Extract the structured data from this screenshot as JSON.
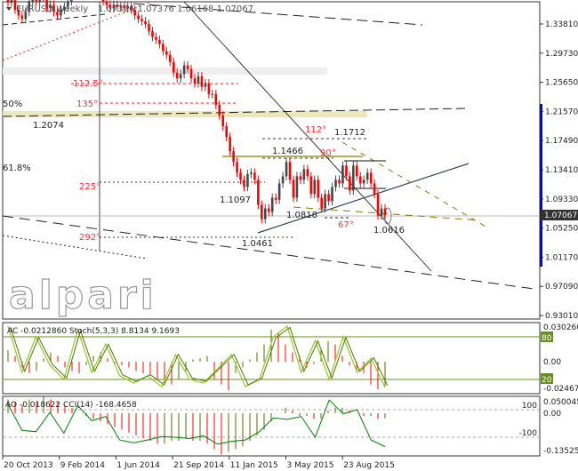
{
  "header": {
    "symbol": "EURUSD,Weekly",
    "ohlc": "1.07376 1.07376 1.06168 1.07067"
  },
  "current_price": "1.07067",
  "watermark": "alpari",
  "colors": {
    "bull": "#404a4a",
    "bear": "#ff0000",
    "stoch_main": "#4a7a00",
    "stoch_signal": "#9acd32",
    "level": "#6b8e23",
    "cci": "#008000",
    "current_price_bg": "#333333",
    "scale_bar": "#0000ff"
  },
  "annotations": {
    "fib_50": "50%",
    "fib_618": "61.8%",
    "a1125": "112.5°",
    "a135": "135°",
    "a225": "225°",
    "a292": "292°",
    "a112": "112°",
    "a90": "90°",
    "a67": "67°",
    "p12074": "1.2074",
    "p11097": "1.1097",
    "p10461": "1.0461",
    "p11466": "1.1466",
    "p10818": "1.0818",
    "p11712": "1.1712",
    "p10616": "1.0616"
  },
  "chart_data": [
    {
      "type": "candlestick",
      "title": "EURUSD,Weekly",
      "ylim": [
        0.91,
        1.37
      ],
      "yticks": [
        "1.33810",
        "1.29730",
        "1.25650",
        "1.21570",
        "1.17490",
        "1.13410",
        "1.09330",
        "1.05250",
        "1.01170",
        "0.97090",
        "0.93010"
      ],
      "xticks": [
        "20 Oct 2013",
        "9 Feb 2014",
        "1 Jun 2014",
        "21 Sep 2014",
        "11 Jan 2015",
        "3 May 2015",
        "23 Aug 2015"
      ],
      "closes": [
        1.368,
        1.38,
        1.358,
        1.35,
        1.345,
        1.355,
        1.37,
        1.375,
        1.37,
        1.38,
        1.375,
        1.36,
        1.365,
        1.355,
        1.35,
        1.358,
        1.362,
        1.37,
        1.378,
        1.385,
        1.38,
        1.378,
        1.382,
        1.386,
        1.388,
        1.39,
        1.385,
        1.37,
        1.365,
        1.36,
        1.365,
        1.362,
        1.364,
        1.36,
        1.363,
        1.358,
        1.35,
        1.345,
        1.342,
        1.338,
        1.328,
        1.32,
        1.316,
        1.31,
        1.3,
        1.295,
        1.285,
        1.27,
        1.262,
        1.268,
        1.28,
        1.275,
        1.262,
        1.255,
        1.265,
        1.25,
        1.255,
        1.24,
        1.24,
        1.225,
        1.21,
        1.195,
        1.18,
        1.16,
        1.145,
        1.13,
        1.12,
        1.11,
        1.128,
        1.13,
        1.12,
        1.085,
        1.065,
        1.08,
        1.075,
        1.095,
        1.092,
        1.115,
        1.125,
        1.145,
        1.12,
        1.095,
        1.125,
        1.12,
        1.135,
        1.125,
        1.1,
        1.12,
        1.095,
        1.08,
        1.1,
        1.09,
        1.11,
        1.12,
        1.115,
        1.14,
        1.125,
        1.105,
        1.14,
        1.125,
        1.115,
        1.12,
        1.13,
        1.115,
        1.1,
        1.07,
        1.08,
        1.07067
      ]
    },
    {
      "type": "indicator",
      "label": "AC -0.0212860  Stoch(5,3,3) 8.8134 9.1693",
      "yticks": [
        "0.030260",
        "0.00",
        "-0.024678"
      ],
      "levels": [
        "80",
        "20"
      ],
      "ac": [
        0.01,
        0.005,
        -0.005,
        -0.01,
        -0.008,
        0.003,
        0.008,
        0.005,
        -0.005,
        -0.008,
        -0.01,
        -0.003,
        0.005,
        0.008,
        0.003,
        -0.002,
        -0.003,
        -0.005,
        -0.008,
        -0.01,
        -0.012,
        -0.015,
        -0.018,
        -0.02,
        -0.015,
        -0.008,
        0.002,
        0.003,
        0.005,
        -0.015,
        -0.02,
        -0.025,
        -0.01,
        -0.005,
        0.002,
        0.008,
        0.015,
        0.028,
        0.025,
        0.015,
        0.008,
        0.005,
        -0.005,
        -0.002,
        0.01,
        0.018,
        0.015,
        0.005,
        -0.003,
        -0.008,
        -0.01,
        -0.02,
        -0.024,
        -0.0213
      ],
      "stoch": [
        95,
        30,
        80,
        40,
        20,
        90,
        30,
        70,
        25,
        15,
        25,
        10,
        55,
        20,
        15,
        35,
        55,
        10,
        20,
        80,
        95,
        30,
        75,
        20,
        80,
        30,
        50,
        8.8
      ]
    },
    {
      "type": "indicator",
      "label": "AO -0.018622  CCI(14) -168.4658",
      "yticks": [
        "0.050045",
        "0.00",
        "-0.135252"
      ],
      "levels": [
        "100",
        "-100"
      ],
      "ao": [
        0.05,
        0.04,
        0.03,
        0.05,
        0.04,
        0.06,
        0.05,
        0.04,
        0.03,
        0.02,
        0,
        -0.01,
        -0.02,
        -0.03,
        -0.04,
        -0.05,
        -0.06,
        -0.07,
        -0.08,
        -0.09,
        -0.1,
        -0.11,
        -0.11,
        -0.1,
        -0.1,
        -0.09,
        -0.1,
        -0.1,
        -0.11,
        -0.13,
        -0.15,
        -0.14,
        -0.13,
        -0.12,
        -0.1,
        -0.08,
        -0.06,
        -0.03,
        0,
        0.02,
        0.01,
        -0.01,
        -0.01,
        -0.02,
        -0.02,
        0.01,
        0.02,
        0.02,
        0.01,
        0,
        -0.01,
        -0.01,
        -0.02,
        -0.0186
      ],
      "cci": [
        140,
        -50,
        -60,
        80,
        -70,
        130,
        20,
        50,
        -120,
        -140,
        -120,
        -95,
        -100,
        -110,
        -90,
        -150,
        -130,
        -120,
        -60,
        40,
        30,
        50,
        -100,
        170,
        70,
        100,
        -120,
        -168.5
      ]
    }
  ]
}
